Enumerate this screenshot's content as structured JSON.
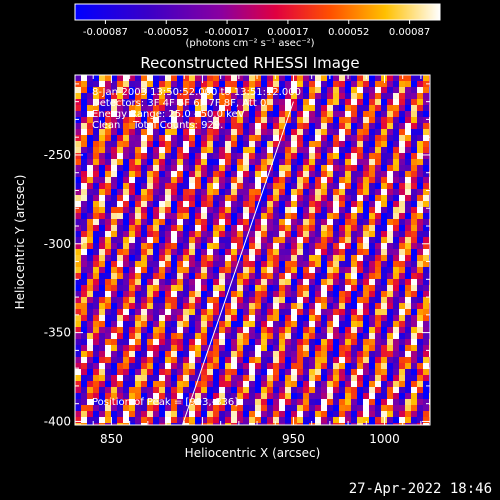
{
  "colorbar": {
    "tick_labels": [
      "-0.00087",
      "-0.00052",
      "-0.00017",
      "0.00017",
      "0.00052",
      "0.00087"
    ],
    "units": "(photons cm⁻² s⁻¹ asec⁻²)"
  },
  "chart_data": {
    "type": "heatmap",
    "title": "Reconstructed RHESSI Image",
    "xlabel": "Heliocentric X (arcsec)",
    "ylabel": "Heliocentric Y (arcsec)",
    "xlim": [
      830,
      1025
    ],
    "ylim": [
      -402,
      -205
    ],
    "x_ticks": [
      850,
      900,
      950,
      1000
    ],
    "y_ticks": [
      -250,
      -300,
      -350,
      -400
    ],
    "value_range": [
      -0.00087,
      0.00087
    ],
    "colormap": "blue-purple-red-yellow-white",
    "annotations": [
      "8-Jan-2003 13:50:52.000 to 13:51:12.000",
      "Detectors: 3F 4F 5F 6F 7F 8F, Att 0",
      "Energy Range: 25.0 - 50.0 keV",
      "Clean    Total Counts: 929."
    ],
    "peak_label": "Position of Peak = [993,-336]",
    "limb_line": [
      [
        889,
        -402
      ],
      [
        950,
        -220
      ]
    ]
  },
  "footer": {
    "timestamp": "27-Apr-2022 18:46"
  }
}
